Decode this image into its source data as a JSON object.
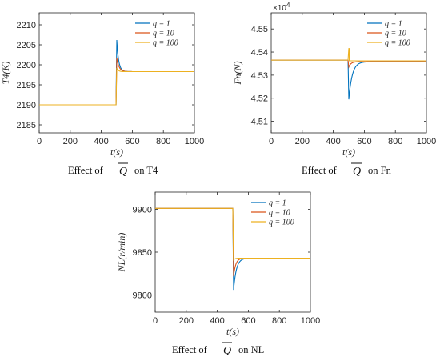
{
  "chart_data": [
    {
      "type": "line",
      "xlabel": "t(s)",
      "ylabel": "T4(K)",
      "xlim": [
        0,
        1000
      ],
      "ylim": [
        2183,
        2213
      ],
      "xticks": [
        0,
        200,
        400,
        600,
        800,
        1000
      ],
      "yticks": [
        2185,
        2190,
        2195,
        2200,
        2205,
        2210
      ],
      "legend": "top-right",
      "step_time": 500,
      "series": [
        {
          "name": "q = 1",
          "color": "#0072BD",
          "initial": 2190,
          "peak": 2206.2,
          "final": 2198.3
        },
        {
          "name": "q = 10",
          "color": "#D95319",
          "initial": 2190,
          "peak": 2201.8,
          "final": 2198.3
        },
        {
          "name": "q = 100",
          "color": "#EDB120",
          "initial": 2190,
          "peak": 2199.2,
          "final": 2198.3
        }
      ],
      "caption": {
        "prefix": "Effect of",
        "symbol": "Q",
        "suffix": "on T4"
      }
    },
    {
      "type": "line",
      "xlabel": "t(s)",
      "ylabel": "Fn(N)",
      "exponent_label": "×10^4",
      "xlim": [
        0,
        1000
      ],
      "ylim": [
        4.505,
        4.557
      ],
      "xticks": [
        0,
        200,
        400,
        600,
        800,
        1000
      ],
      "yticks": [
        4.51,
        4.52,
        4.53,
        4.54,
        4.55
      ],
      "legend": "top-right",
      "step_time": 500,
      "series": [
        {
          "name": "q = 1",
          "color": "#0072BD",
          "initial": 4.5365,
          "dip": 4.5195,
          "final": 4.5358
        },
        {
          "name": "q = 10",
          "color": "#D95319",
          "initial": 4.5365,
          "dip": 4.5335,
          "final": 4.5358
        },
        {
          "name": "q = 100",
          "color": "#EDB120",
          "initial": 4.5365,
          "spike": 4.5415,
          "final": 4.5362
        }
      ],
      "caption": {
        "prefix": "Effect of",
        "symbol": "Q",
        "suffix": "on Fn"
      }
    },
    {
      "type": "line",
      "xlabel": "t(s)",
      "ylabel": "NL(r/min)",
      "xlim": [
        0,
        1000
      ],
      "ylim": [
        9780,
        9920
      ],
      "xticks": [
        0,
        200,
        400,
        600,
        800,
        1000
      ],
      "yticks": [
        9800,
        9850,
        9900
      ],
      "legend": "top-right",
      "step_time": 505,
      "series": [
        {
          "name": "q = 1",
          "color": "#0072BD",
          "initial": 9901,
          "dip": 9806,
          "final": 9843
        },
        {
          "name": "q = 10",
          "color": "#D95319",
          "initial": 9901,
          "dip": 9822,
          "final": 9843
        },
        {
          "name": "q = 100",
          "color": "#EDB120",
          "initial": 9901,
          "dip": 9841,
          "final": 9843
        }
      ],
      "caption": {
        "prefix": "Effect of",
        "symbol": "Q",
        "suffix": "on NL"
      }
    }
  ]
}
